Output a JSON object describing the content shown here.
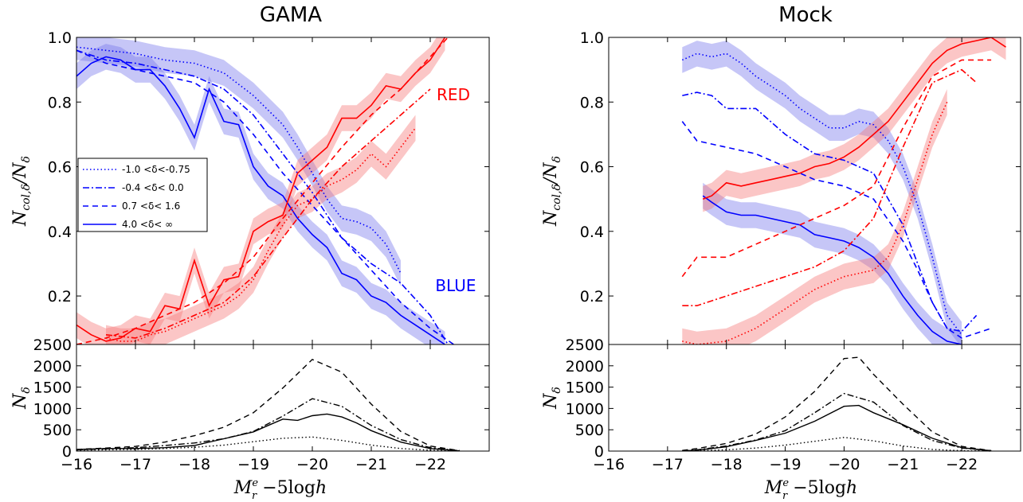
{
  "chart_data": [
    {
      "type": "line",
      "title": "GAMA",
      "panel": "top",
      "xlabel": "",
      "ylabel": "N_col,δ / N_δ",
      "xlim": [
        -16,
        -23
      ],
      "ylim": [
        0.05,
        1.0
      ],
      "yticks": [
        0.2,
        0.4,
        0.6,
        0.8,
        1.0
      ],
      "annotations": [
        {
          "text": "RED",
          "x": -21.95,
          "y": 0.83,
          "color": "#ff0000"
        },
        {
          "text": "BLUE",
          "x": -21.95,
          "y": 0.18,
          "color": "#0000ff"
        }
      ],
      "legend": {
        "position": "center-left",
        "entries": [
          {
            "label": "-1.0  <δ<-0.75",
            "dash": "dotted"
          },
          {
            "label": "-0.4  <δ< 0.0",
            "dash": "dashdot"
          },
          {
            "label": " 0.7  <δ< 1.6",
            "dash": "dashed"
          },
          {
            "label": "4.0  <δ< ∞",
            "dash": "solid"
          }
        ]
      },
      "series": [
        {
          "color": "blue",
          "dash": "dotted",
          "band": true,
          "x": [
            -16,
            -16.5,
            -17,
            -17.5,
            -18,
            -18.5,
            -19,
            -19.5,
            -19.75,
            -20,
            -20.25,
            -20.5,
            -20.75,
            -21,
            -21.25,
            -21.5
          ],
          "y": [
            0.97,
            0.96,
            0.95,
            0.93,
            0.92,
            0.89,
            0.82,
            0.73,
            0.66,
            0.58,
            0.5,
            0.44,
            0.43,
            0.41,
            0.36,
            0.27
          ]
        },
        {
          "color": "blue",
          "dash": "dashdot",
          "band": false,
          "x": [
            -16,
            -16.5,
            -17,
            -17.5,
            -18,
            -18.5,
            -19,
            -19.5,
            -20,
            -20.5,
            -21,
            -21.5,
            -22,
            -22.3
          ],
          "y": [
            0.96,
            0.93,
            0.92,
            0.9,
            0.88,
            0.84,
            0.76,
            0.64,
            0.52,
            0.38,
            0.3,
            0.24,
            0.14,
            0.05
          ]
        },
        {
          "color": "blue",
          "dash": "dashed",
          "band": false,
          "x": [
            -16,
            -16.5,
            -17,
            -17.5,
            -18,
            -18.5,
            -19,
            -19.5,
            -20,
            -20.5,
            -21,
            -21.5,
            -22,
            -22.4
          ],
          "y": [
            0.96,
            0.92,
            0.9,
            0.88,
            0.86,
            0.8,
            0.7,
            0.58,
            0.48,
            0.38,
            0.28,
            0.18,
            0.1,
            0.05
          ]
        },
        {
          "color": "blue",
          "dash": "solid",
          "band": true,
          "x": [
            -16,
            -16.25,
            -16.5,
            -16.75,
            -17,
            -17.25,
            -17.5,
            -17.75,
            -18,
            -18.25,
            -18.5,
            -18.75,
            -19,
            -19.25,
            -19.5,
            -19.75,
            -20,
            -20.25,
            -20.5,
            -20.75,
            -21,
            -21.25,
            -21.5,
            -21.75,
            -22,
            -22.25
          ],
          "y": [
            0.88,
            0.92,
            0.94,
            0.93,
            0.9,
            0.9,
            0.85,
            0.78,
            0.69,
            0.84,
            0.74,
            0.73,
            0.6,
            0.54,
            0.51,
            0.44,
            0.39,
            0.35,
            0.27,
            0.25,
            0.2,
            0.18,
            0.14,
            0.11,
            0.08,
            0.05
          ]
        },
        {
          "color": "red",
          "dash": "dotted",
          "band": true,
          "x": [
            -16.5,
            -16.75,
            -17,
            -17.25,
            -17.5,
            -17.75,
            -18,
            -18.25,
            -18.5,
            -18.75,
            -19,
            -19.25,
            -19.5,
            -19.75,
            -20,
            -20.25,
            -20.5,
            -20.75,
            -21,
            -21.25,
            -21.5,
            -21.75
          ],
          "y": [
            0.07,
            0.06,
            0.06,
            0.08,
            0.09,
            0.11,
            0.13,
            0.15,
            0.17,
            0.2,
            0.25,
            0.34,
            0.42,
            0.48,
            0.5,
            0.54,
            0.56,
            0.59,
            0.64,
            0.6,
            0.66,
            0.72
          ]
        },
        {
          "color": "red",
          "dash": "dashdot",
          "band": false,
          "x": [
            -16.5,
            -17,
            -17.5,
            -18,
            -18.5,
            -19,
            -19.5,
            -20,
            -20.5,
            -21,
            -21.5,
            -22
          ],
          "y": [
            0.08,
            0.07,
            0.1,
            0.14,
            0.18,
            0.26,
            0.38,
            0.5,
            0.6,
            0.68,
            0.76,
            0.84
          ]
        },
        {
          "color": "red",
          "dash": "dashed",
          "band": false,
          "x": [
            -16,
            -16.5,
            -17,
            -17.5,
            -18,
            -18.5,
            -19,
            -19.5,
            -20,
            -20.5,
            -21,
            -21.5,
            -22,
            -22.3
          ],
          "y": [
            0.05,
            0.07,
            0.1,
            0.14,
            0.18,
            0.24,
            0.32,
            0.44,
            0.55,
            0.66,
            0.76,
            0.84,
            0.94,
            1.0
          ]
        },
        {
          "color": "red",
          "dash": "solid",
          "band": true,
          "x": [
            -16,
            -16.25,
            -16.5,
            -16.75,
            -17,
            -17.25,
            -17.5,
            -17.75,
            -18,
            -18.25,
            -18.5,
            -18.75,
            -19,
            -19.25,
            -19.5,
            -19.75,
            -20,
            -20.25,
            -20.5,
            -20.75,
            -21,
            -21.25,
            -21.5,
            -21.75,
            -22,
            -22.25
          ],
          "y": [
            0.11,
            0.08,
            0.06,
            0.07,
            0.1,
            0.09,
            0.17,
            0.16,
            0.31,
            0.17,
            0.25,
            0.26,
            0.4,
            0.43,
            0.45,
            0.58,
            0.62,
            0.66,
            0.75,
            0.75,
            0.79,
            0.85,
            0.84,
            0.89,
            0.93,
            1.0
          ]
        }
      ]
    },
    {
      "type": "line",
      "title": "",
      "panel": "bottom",
      "xlabel": "M_r^e −5logh",
      "ylabel": "N_δ",
      "xlim": [
        -16,
        -23
      ],
      "ylim": [
        0,
        2500
      ],
      "xticks": [
        -16,
        -17,
        -18,
        -19,
        -20,
        -21,
        -22
      ],
      "xticklabels": [
        "−16",
        "−17",
        "−18",
        "−19",
        "−20",
        "−21",
        "−22"
      ],
      "yticks": [
        0,
        500,
        1000,
        1500,
        2000,
        2500
      ],
      "series": [
        {
          "dash": "dotted",
          "x": [
            -16,
            -16.5,
            -17,
            -17.5,
            -18,
            -18.5,
            -19,
            -19.5,
            -20,
            -20.5,
            -21,
            -21.5,
            -22,
            -22.5
          ],
          "y": [
            20,
            30,
            40,
            60,
            90,
            140,
            220,
            300,
            330,
            250,
            140,
            60,
            20,
            5
          ]
        },
        {
          "dash": "dashdot",
          "x": [
            -16,
            -16.5,
            -17,
            -17.5,
            -18,
            -18.5,
            -19,
            -19.5,
            -20,
            -20.5,
            -21,
            -21.5,
            -22,
            -22.5
          ],
          "y": [
            30,
            50,
            80,
            130,
            190,
            290,
            460,
            820,
            1230,
            1050,
            600,
            270,
            80,
            10
          ]
        },
        {
          "dash": "dashed",
          "x": [
            -16,
            -16.5,
            -17,
            -17.5,
            -18,
            -18.5,
            -19,
            -19.5,
            -20,
            -20.5,
            -21,
            -21.5,
            -22,
            -22.5
          ],
          "y": [
            40,
            70,
            110,
            210,
            360,
            560,
            900,
            1480,
            2150,
            1850,
            1100,
            460,
            120,
            10
          ]
        },
        {
          "dash": "solid",
          "x": [
            -16,
            -16.5,
            -17,
            -17.5,
            -18,
            -18.5,
            -19,
            -19.25,
            -19.5,
            -19.75,
            -20,
            -20.25,
            -20.5,
            -20.75,
            -21,
            -21.5,
            -22,
            -22.5
          ],
          "y": [
            40,
            60,
            60,
            80,
            130,
            290,
            450,
            600,
            750,
            720,
            830,
            870,
            800,
            660,
            480,
            210,
            60,
            5
          ]
        }
      ]
    },
    {
      "type": "line",
      "title": "Mock",
      "panel": "top",
      "xlabel": "",
      "ylabel": "N_col,δ / N_δ",
      "xlim": [
        -16,
        -23
      ],
      "ylim": [
        0.05,
        1.0
      ],
      "yticks": [
        0.2,
        0.4,
        0.6,
        0.8,
        1.0
      ],
      "series": [
        {
          "color": "blue",
          "dash": "dotted",
          "band": true,
          "x": [
            -17.25,
            -17.5,
            -17.75,
            -18,
            -18.25,
            -18.5,
            -18.75,
            -19,
            -19.25,
            -19.5,
            -19.75,
            -20,
            -20.25,
            -20.5,
            -20.75,
            -21,
            -21.25,
            -21.5,
            -21.75,
            -22
          ],
          "y": [
            0.93,
            0.95,
            0.94,
            0.95,
            0.92,
            0.88,
            0.85,
            0.82,
            0.78,
            0.75,
            0.72,
            0.72,
            0.74,
            0.73,
            0.68,
            0.6,
            0.48,
            0.32,
            0.14,
            0.08
          ]
        },
        {
          "color": "blue",
          "dash": "dashdot",
          "band": false,
          "x": [
            -17.25,
            -17.5,
            -17.75,
            -18,
            -18.5,
            -19,
            -19.5,
            -20,
            -20.5,
            -21,
            -21.25,
            -21.5,
            -21.75,
            -22,
            -22.25
          ],
          "y": [
            0.82,
            0.83,
            0.82,
            0.78,
            0.78,
            0.7,
            0.64,
            0.62,
            0.58,
            0.42,
            0.3,
            0.18,
            0.1,
            0.09,
            0.14
          ]
        },
        {
          "color": "blue",
          "dash": "dashed",
          "band": false,
          "x": [
            -17.25,
            -17.5,
            -18,
            -18.5,
            -19,
            -19.5,
            -20,
            -20.5,
            -21,
            -21.25,
            -21.5,
            -21.75,
            -22,
            -22.5
          ],
          "y": [
            0.74,
            0.68,
            0.66,
            0.64,
            0.6,
            0.56,
            0.54,
            0.5,
            0.37,
            0.28,
            0.18,
            0.1,
            0.07,
            0.1
          ]
        },
        {
          "color": "blue",
          "dash": "solid",
          "band": true,
          "x": [
            -17.6,
            -17.75,
            -18,
            -18.25,
            -18.5,
            -18.75,
            -19,
            -19.25,
            -19.5,
            -19.75,
            -20,
            -20.25,
            -20.5,
            -20.75,
            -21,
            -21.25,
            -21.5,
            -21.75,
            -22
          ],
          "y": [
            0.51,
            0.49,
            0.46,
            0.45,
            0.45,
            0.44,
            0.43,
            0.42,
            0.39,
            0.38,
            0.37,
            0.35,
            0.32,
            0.27,
            0.2,
            0.14,
            0.09,
            0.06,
            0.05
          ]
        },
        {
          "color": "red",
          "dash": "dotted",
          "band": true,
          "x": [
            -17.25,
            -17.5,
            -18,
            -18.5,
            -19,
            -19.5,
            -20,
            -20.5,
            -20.75,
            -21,
            -21.25,
            -21.5,
            -21.75
          ],
          "y": [
            0.06,
            0.05,
            0.06,
            0.1,
            0.16,
            0.22,
            0.26,
            0.28,
            0.32,
            0.42,
            0.56,
            0.7,
            0.8
          ]
        },
        {
          "color": "red",
          "dash": "dashdot",
          "band": false,
          "x": [
            -17.25,
            -17.5,
            -18,
            -18.5,
            -19,
            -19.5,
            -20,
            -20.5,
            -21,
            -21.5,
            -22,
            -22.25
          ],
          "y": [
            0.17,
            0.17,
            0.2,
            0.23,
            0.26,
            0.29,
            0.34,
            0.44,
            0.66,
            0.86,
            0.9,
            0.86
          ]
        },
        {
          "color": "red",
          "dash": "dashed",
          "band": false,
          "x": [
            -17.25,
            -17.5,
            -18,
            -18.5,
            -19,
            -19.5,
            -20,
            -20.5,
            -21,
            -21.5,
            -22,
            -22.5
          ],
          "y": [
            0.26,
            0.32,
            0.32,
            0.36,
            0.4,
            0.44,
            0.48,
            0.54,
            0.72,
            0.88,
            0.93,
            0.93
          ]
        },
        {
          "color": "red",
          "dash": "solid",
          "band": true,
          "x": [
            -17.6,
            -17.75,
            -18,
            -18.25,
            -18.5,
            -18.75,
            -19,
            -19.25,
            -19.5,
            -19.75,
            -20,
            -20.25,
            -20.5,
            -20.75,
            -21,
            -21.25,
            -21.5,
            -21.75,
            -22,
            -22.25,
            -22.5,
            -22.75
          ],
          "y": [
            0.5,
            0.51,
            0.55,
            0.54,
            0.55,
            0.56,
            0.57,
            0.58,
            0.6,
            0.61,
            0.63,
            0.66,
            0.7,
            0.74,
            0.8,
            0.86,
            0.92,
            0.96,
            0.98,
            0.99,
            1.0,
            0.97
          ]
        }
      ]
    },
    {
      "type": "line",
      "title": "",
      "panel": "bottom",
      "xlabel": "M_r^e −5logh",
      "ylabel": "N_δ",
      "xlim": [
        -16,
        -23
      ],
      "ylim": [
        0,
        2500
      ],
      "xticks": [
        -16,
        -17,
        -18,
        -19,
        -20,
        -21,
        -22
      ],
      "xticklabels": [
        "−16",
        "−17",
        "−18",
        "−19",
        "−20",
        "−21",
        "−22"
      ],
      "yticks": [
        0,
        500,
        1000,
        1500,
        2000,
        2500
      ],
      "series": [
        {
          "dash": "dotted",
          "x": [
            -17.25,
            -17.5,
            -18,
            -18.5,
            -19,
            -19.5,
            -20,
            -20.5,
            -21,
            -21.5,
            -22,
            -22.5
          ],
          "y": [
            5,
            10,
            30,
            70,
            140,
            230,
            320,
            240,
            120,
            40,
            10,
            2
          ]
        },
        {
          "dash": "dashdot",
          "x": [
            -17.25,
            -17.5,
            -18,
            -18.5,
            -19,
            -19.5,
            -20,
            -20.5,
            -21,
            -21.5,
            -22,
            -22.5
          ],
          "y": [
            10,
            30,
            120,
            260,
            480,
            900,
            1350,
            1150,
            600,
            250,
            70,
            10
          ]
        },
        {
          "dash": "dashed",
          "x": [
            -17.25,
            -17.5,
            -18,
            -18.5,
            -19,
            -19.5,
            -20,
            -20.25,
            -20.5,
            -21,
            -21.5,
            -22,
            -22.5
          ],
          "y": [
            15,
            60,
            180,
            400,
            800,
            1400,
            2170,
            2200,
            1800,
            1100,
            450,
            110,
            10
          ]
        },
        {
          "dash": "solid",
          "x": [
            -17.25,
            -17.5,
            -18,
            -18.5,
            -19,
            -19.5,
            -20,
            -20.25,
            -20.5,
            -21,
            -21.5,
            -22,
            -22.5
          ],
          "y": [
            5,
            20,
            100,
            250,
            420,
            700,
            1050,
            1070,
            900,
            620,
            300,
            80,
            5
          ]
        }
      ]
    }
  ]
}
